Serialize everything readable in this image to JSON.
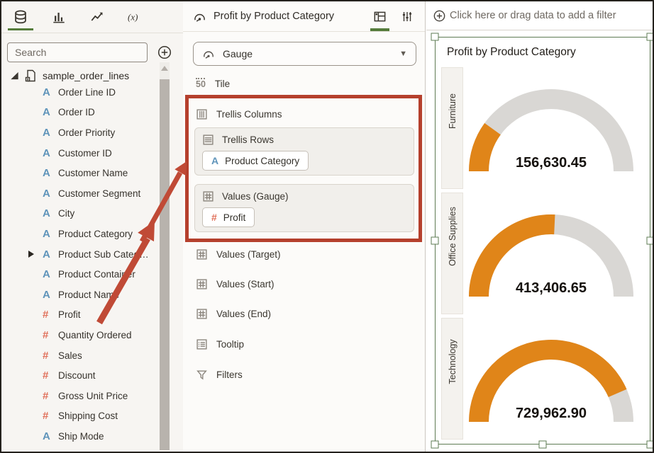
{
  "left_panel": {
    "tabs": [
      {
        "label": "data"
      },
      {
        "label": "visualizations"
      },
      {
        "label": "analytics"
      },
      {
        "label": "calculations"
      }
    ],
    "search_placeholder": "Search",
    "dataset_name": "sample_order_lines",
    "fields": [
      {
        "name": "Order Line ID",
        "icon": "A"
      },
      {
        "name": "Order ID",
        "icon": "A"
      },
      {
        "name": "Order Priority",
        "icon": "A"
      },
      {
        "name": "Customer ID",
        "icon": "A"
      },
      {
        "name": "Customer Name",
        "icon": "A"
      },
      {
        "name": "Customer Segment",
        "icon": "A"
      },
      {
        "name": "City",
        "icon": "A"
      },
      {
        "name": "Product Category",
        "icon": "A"
      },
      {
        "name": "Product Sub Categ…",
        "icon": "A"
      },
      {
        "name": "Product Container",
        "icon": "A"
      },
      {
        "name": "Product Name",
        "icon": "A"
      },
      {
        "name": "Profit",
        "icon": "#"
      },
      {
        "name": "Quantity Ordered",
        "icon": "#"
      },
      {
        "name": "Sales",
        "icon": "#"
      },
      {
        "name": "Discount",
        "icon": "#"
      },
      {
        "name": "Gross Unit Price",
        "icon": "#"
      },
      {
        "name": "Shipping Cost",
        "icon": "#"
      },
      {
        "name": "Ship Mode",
        "icon": "A"
      }
    ]
  },
  "grammar_panel": {
    "title": "Profit by Product Category",
    "viz_type": "Gauge",
    "tile_icon_text": "50",
    "tile_label": "Tile",
    "trellis_columns_label": "Trellis Columns",
    "trellis_rows": {
      "label": "Trellis Rows",
      "pill_icon": "A",
      "pill": "Product Category"
    },
    "values_gauge": {
      "label": "Values (Gauge)",
      "pill_icon": "#",
      "pill": "Profit"
    },
    "rows": [
      "Values (Target)",
      "Values (Start)",
      "Values (End)",
      "Tooltip",
      "Filters"
    ]
  },
  "canvas": {
    "filter_prompt": "Click here or drag data to add a filter",
    "viz_title": "Profit by Product Category"
  },
  "chart_data": {
    "type": "gauge",
    "title": "Profit by Product Category",
    "categories": [
      "Furniture",
      "Office Supplies",
      "Technology"
    ],
    "values": [
      156630.45,
      413406.65,
      729962.9
    ],
    "value_labels": [
      "156,630.45",
      "413,406.65",
      "729,962.90"
    ],
    "fractions": [
      0.2,
      0.515,
      0.87
    ],
    "layout": "vertical trellis of semicircular gauges, one per Product Category",
    "gauge_fill_color": "#E08519",
    "gauge_track_color": "#D9D7D4"
  },
  "colors": {
    "accent_green": "#557C3B",
    "selection_green": "#5E7B53",
    "highlight_red": "#B5402D",
    "arrow_red": "#C04A36",
    "field_text_blue": "#5F94BA",
    "field_number_salmon": "#E0705A"
  }
}
